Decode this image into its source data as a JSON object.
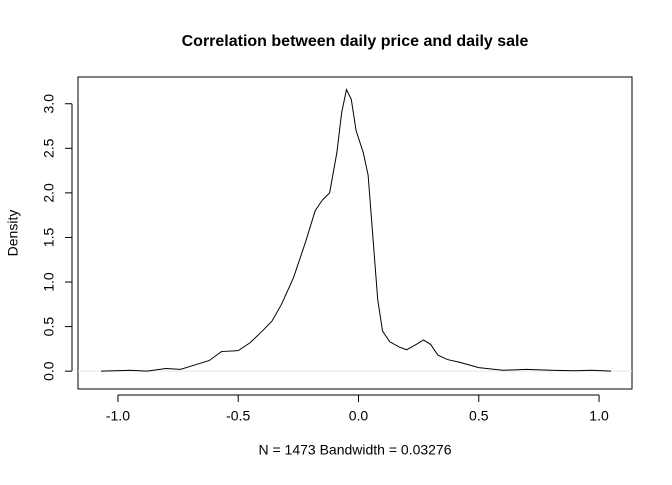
{
  "chart_data": {
    "type": "line",
    "title": "Correlation between daily price and daily sale",
    "ylabel": "Density",
    "xlabel": "N = 1473   Bandwidth = 0.03276",
    "xlim": [
      -1.166,
      1.137
    ],
    "ylim": [
      -0.2,
      3.3
    ],
    "xticks": [
      {
        "value": -1,
        "label": "-1.0"
      },
      -0.5,
      {
        "value": 0,
        "label": "0.0"
      },
      0.5,
      {
        "value": 1,
        "label": "1.0"
      }
    ],
    "yticks": [
      {
        "value": 0,
        "label": "0.0"
      },
      0.5,
      {
        "value": 1,
        "label": "1.0"
      },
      1.5,
      {
        "value": 2,
        "label": "2.0"
      },
      2.5,
      {
        "value": 3,
        "label": "3.0"
      }
    ],
    "x": [
      -1.07,
      -0.95,
      -0.88,
      -0.8,
      -0.74,
      -0.68,
      -0.62,
      -0.57,
      -0.5,
      -0.45,
      -0.4,
      -0.36,
      -0.32,
      -0.27,
      -0.22,
      -0.18,
      -0.15,
      -0.12,
      -0.09,
      -0.07,
      -0.05,
      -0.03,
      -0.01,
      0.02,
      0.04,
      0.06,
      0.08,
      0.1,
      0.13,
      0.17,
      0.2,
      0.24,
      0.27,
      0.3,
      0.33,
      0.37,
      0.42,
      0.5,
      0.6,
      0.7,
      0.8,
      0.9,
      0.97,
      1.05
    ],
    "series": [
      {
        "color": "#000000",
        "values": [
          0.0,
          0.01,
          0.0,
          0.03,
          0.02,
          0.07,
          0.12,
          0.22,
          0.23,
          0.32,
          0.45,
          0.56,
          0.75,
          1.05,
          1.45,
          1.8,
          1.92,
          2.0,
          2.45,
          2.9,
          3.16,
          3.05,
          2.7,
          2.45,
          2.2,
          1.5,
          0.8,
          0.45,
          0.33,
          0.27,
          0.24,
          0.3,
          0.35,
          0.3,
          0.18,
          0.13,
          0.1,
          0.04,
          0.01,
          0.02,
          0.01,
          0.005,
          0.01,
          0.0
        ]
      }
    ]
  }
}
